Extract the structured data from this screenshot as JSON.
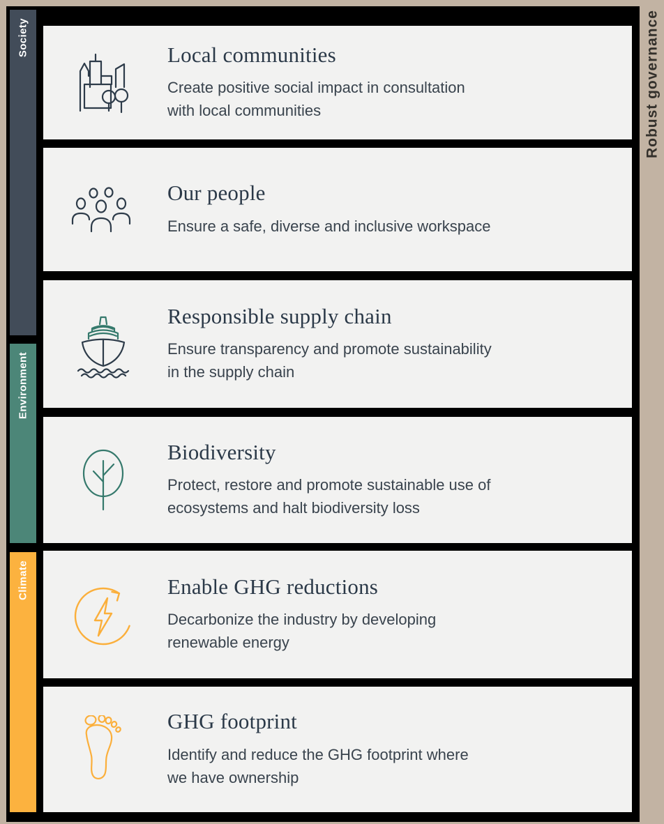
{
  "colors": {
    "frame": "#c2b3a3",
    "panel": "#000000",
    "card": "#f2f2f1",
    "navy": "#2b3948",
    "body": "#39434d",
    "teal-icon": "#35796c",
    "yellow-icon": "#fbaf3b",
    "gov-text": "#33302b"
  },
  "governance_label": "Robust governance",
  "categories": [
    {
      "id": "society",
      "label": "Society",
      "color": "#424c59"
    },
    {
      "id": "environment",
      "label": "Environment",
      "color": "#4c8678"
    },
    {
      "id": "climate",
      "label": "Climate",
      "color": "#fcb23f"
    }
  ],
  "cards": [
    {
      "icon": "city-icon",
      "title": "Local communities",
      "description": "Create positive social impact in consultation\nwith local communities"
    },
    {
      "icon": "people-icon",
      "title": "Our people",
      "description": "Ensure a safe, diverse and inclusive workspace"
    },
    {
      "icon": "ship-icon",
      "title": "Responsible supply chain",
      "description": "Ensure transparency and promote sustainability\nin the supply chain"
    },
    {
      "icon": "tree-icon",
      "title": "Biodiversity",
      "description": "Protect, restore and promote sustainable use of\necosystems and halt biodiversity loss"
    },
    {
      "icon": "renewable-energy-icon",
      "title": "Enable GHG reductions",
      "description": "Decarbonize the industry by developing\nrenewable energy"
    },
    {
      "icon": "footprint-icon",
      "title": "GHG footprint",
      "description": "Identify and reduce the GHG footprint where\nwe have ownership"
    }
  ]
}
